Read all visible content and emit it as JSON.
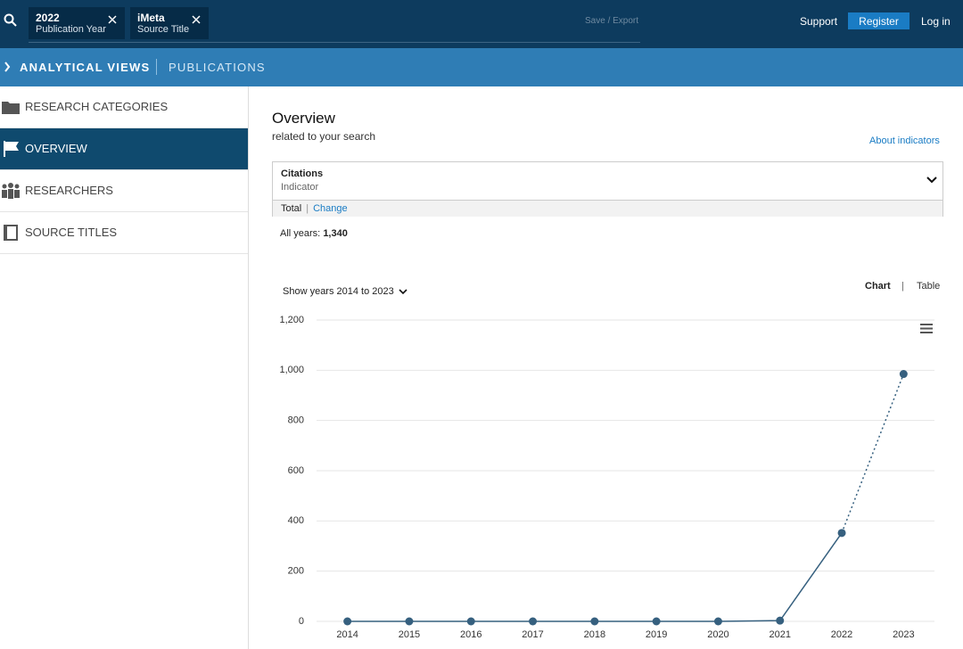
{
  "header": {
    "filters": [
      {
        "value": "2022",
        "label": "Publication Year"
      },
      {
        "value": "iMeta",
        "label": "Source Title"
      }
    ],
    "save_export": "Save / Export",
    "support": "Support",
    "register": "Register",
    "login": "Log in"
  },
  "breadcrumb": {
    "section": "ANALYTICAL VIEWS",
    "page": "PUBLICATIONS"
  },
  "sidebar": {
    "items": [
      "RESEARCH CATEGORIES",
      "OVERVIEW",
      "RESEARCHERS",
      "SOURCE TITLES"
    ]
  },
  "overview": {
    "title": "Overview",
    "subtitle": "related to your search",
    "about": "About indicators",
    "indicator_name": "Citations",
    "indicator_label": "Indicator",
    "total": "Total",
    "change": "Change",
    "all_years_label": "All years:",
    "all_years_value": "1,340",
    "show_years": "Show years 2014 to 2023",
    "chart_toggle": "Chart",
    "table_toggle": "Table"
  },
  "chart_data": {
    "type": "line",
    "categories": [
      "2014",
      "2015",
      "2016",
      "2017",
      "2018",
      "2019",
      "2020",
      "2021",
      "2022",
      "2023"
    ],
    "series": [
      {
        "name": "Citations",
        "color": "#36607f",
        "values": [
          0,
          0,
          0,
          0,
          0,
          0,
          0,
          3,
          352,
          985
        ]
      }
    ],
    "ylim": [
      0,
      1200
    ],
    "yticks": [
      0,
      200,
      400,
      600,
      800,
      {
        "value": 1000,
        "label": "1,000"
      },
      {
        "value": 1200,
        "label": "1,200"
      }
    ],
    "grid": true
  }
}
